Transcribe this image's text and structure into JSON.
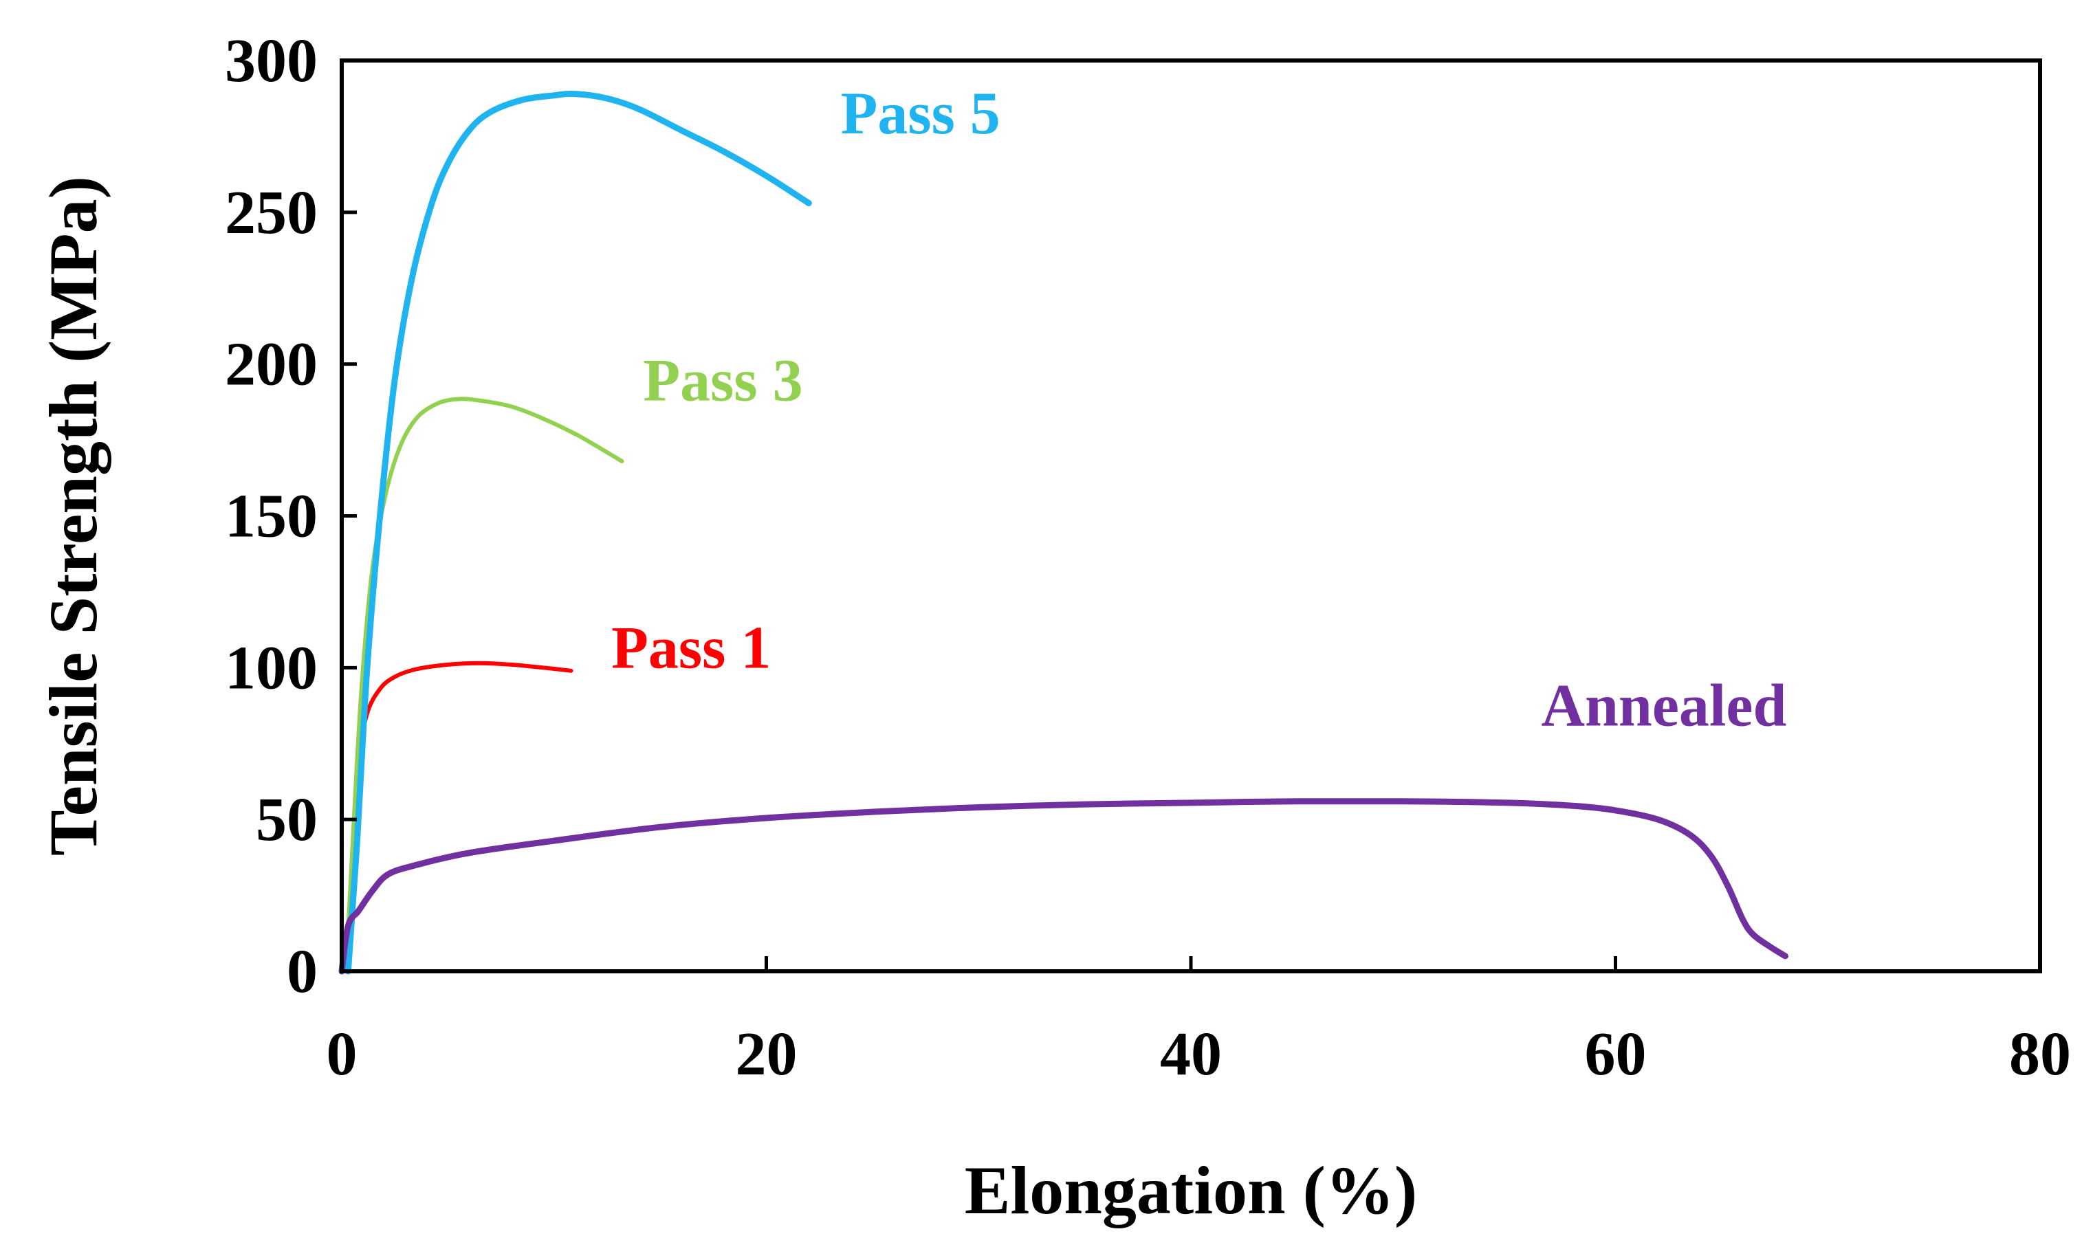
{
  "chart_data": {
    "type": "line",
    "title": "",
    "xlabel": "Elongation (%)",
    "ylabel": "Tensile Strength (MPa)",
    "xlim": [
      0,
      80
    ],
    "ylim": [
      0,
      300
    ],
    "xticks": [
      0,
      20,
      40,
      60,
      80
    ],
    "yticks": [
      0,
      50,
      100,
      150,
      200,
      250,
      300
    ],
    "grid": false,
    "legend": "none (direct curve labels)",
    "series": [
      {
        "name": "Pass 1",
        "label": "Pass 1",
        "color": "#ff0000",
        "label_at": [
          12.7,
          100
        ],
        "points": [
          [
            0.3,
            0
          ],
          [
            0.4,
            20
          ],
          [
            0.6,
            50
          ],
          [
            0.8,
            70
          ],
          [
            1.2,
            85
          ],
          [
            1.8,
            93
          ],
          [
            2.5,
            97
          ],
          [
            3.5,
            99.5
          ],
          [
            5,
            101
          ],
          [
            6.5,
            101.5
          ],
          [
            8,
            101
          ],
          [
            9.5,
            100
          ],
          [
            10.8,
            99
          ]
        ]
      },
      {
        "name": "Pass 3",
        "label": "Pass 3",
        "color": "#92d050",
        "label_at": [
          14.2,
          188
        ],
        "points": [
          [
            0.2,
            0
          ],
          [
            0.5,
            40
          ],
          [
            0.9,
            90
          ],
          [
            1.4,
            130
          ],
          [
            2,
            155
          ],
          [
            2.7,
            172
          ],
          [
            3.5,
            182
          ],
          [
            4.5,
            187
          ],
          [
            5.5,
            188.5
          ],
          [
            6.5,
            188
          ],
          [
            8,
            186
          ],
          [
            9.5,
            182
          ],
          [
            11,
            177
          ],
          [
            12,
            173
          ],
          [
            13.2,
            168
          ]
        ]
      },
      {
        "name": "Pass 5",
        "label": "Pass 5",
        "color": "#1fb4f0",
        "label_at": [
          23.5,
          276
        ],
        "points": [
          [
            0.3,
            0
          ],
          [
            0.7,
            40
          ],
          [
            1.2,
            100
          ],
          [
            1.8,
            150
          ],
          [
            2.5,
            195
          ],
          [
            3.3,
            228
          ],
          [
            4.2,
            252
          ],
          [
            5,
            266
          ],
          [
            6,
            277
          ],
          [
            7,
            283
          ],
          [
            8.5,
            287
          ],
          [
            10,
            288.5
          ],
          [
            11,
            289
          ],
          [
            12.5,
            287.5
          ],
          [
            14,
            284
          ],
          [
            16,
            277
          ],
          [
            18,
            270
          ],
          [
            20,
            262
          ],
          [
            22,
            253
          ]
        ]
      },
      {
        "name": "Annealed",
        "label": "Annealed",
        "color": "#7030a0",
        "label_at": [
          56.5,
          81
        ],
        "points": [
          [
            0,
            0
          ],
          [
            0.3,
            15
          ],
          [
            0.8,
            20
          ],
          [
            1.5,
            27
          ],
          [
            2.2,
            32
          ],
          [
            3.5,
            35
          ],
          [
            6,
            39
          ],
          [
            10,
            43
          ],
          [
            15,
            47.5
          ],
          [
            20,
            50.5
          ],
          [
            25,
            52.5
          ],
          [
            30,
            54
          ],
          [
            35,
            55
          ],
          [
            40,
            55.5
          ],
          [
            45,
            56
          ],
          [
            50,
            56
          ],
          [
            55,
            55.5
          ],
          [
            58,
            54.5
          ],
          [
            60,
            53
          ],
          [
            62,
            50
          ],
          [
            63.5,
            45
          ],
          [
            64.5,
            38
          ],
          [
            65.3,
            28
          ],
          [
            66,
            17
          ],
          [
            66.5,
            12
          ],
          [
            67.3,
            8
          ],
          [
            68,
            5
          ]
        ]
      }
    ]
  }
}
